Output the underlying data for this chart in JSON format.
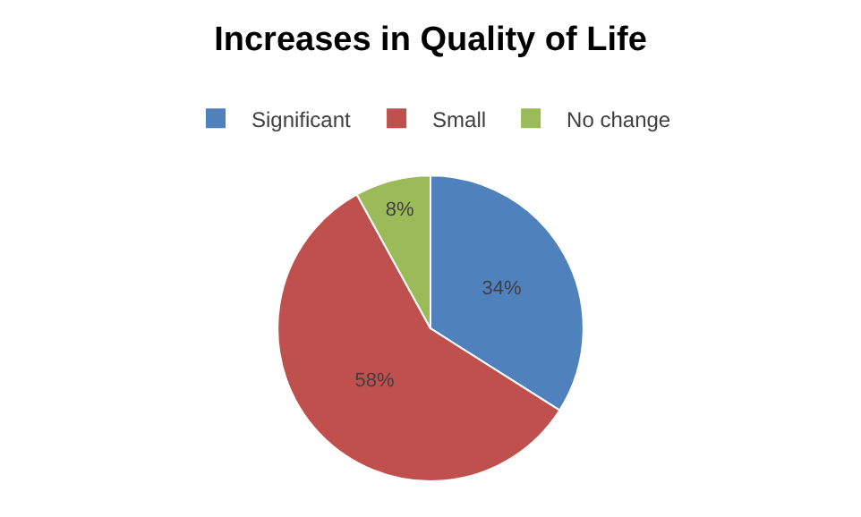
{
  "chart_data": {
    "type": "pie",
    "title": "Increases in Quality of Life",
    "categories": [
      "Significant",
      "Small",
      "No change"
    ],
    "values": [
      34,
      58,
      8
    ],
    "colors": [
      "#4f81bd",
      "#c0504d",
      "#9bbb59"
    ],
    "value_labels": [
      "34%",
      "58%",
      "8%"
    ],
    "legend": "top"
  }
}
